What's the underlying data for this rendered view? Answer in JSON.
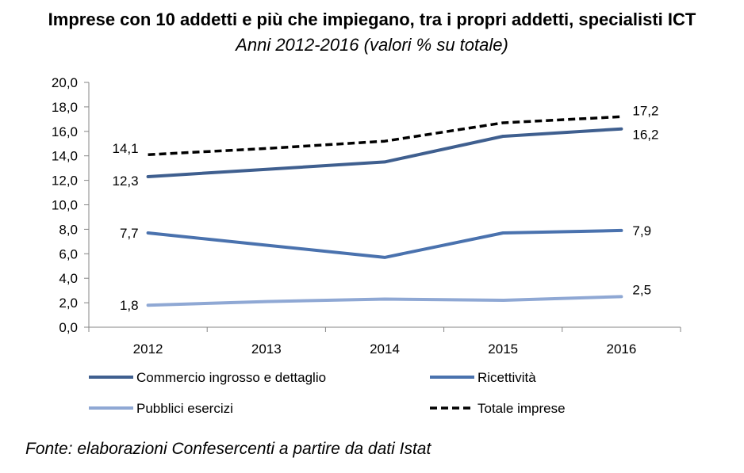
{
  "chart_data": {
    "type": "line",
    "title": "Imprese con 10 addetti e più che impiegano, tra i propri addetti, specialisti ICT",
    "subtitle": "Anni 2012-2016 (valori % su totale)",
    "categories": [
      "2012",
      "2013",
      "2014",
      "2015",
      "2016"
    ],
    "ylim": [
      0,
      20
    ],
    "y_ticks": [
      "0,0",
      "2,0",
      "4,0",
      "6,0",
      "8,0",
      "10,0",
      "12,0",
      "14,0",
      "16,0",
      "18,0",
      "20,0"
    ],
    "grid": false,
    "legend_position": "bottom",
    "series": [
      {
        "name": "Commercio ingrosso e dettaglio",
        "values": [
          12.3,
          12.9,
          13.5,
          15.6,
          16.2
        ],
        "color": "#3F5F8F",
        "dash": "solid",
        "labels": [
          {
            "index": 0,
            "text": "12,3"
          },
          {
            "index": 4,
            "text": "16,2"
          }
        ]
      },
      {
        "name": "Ricettività",
        "values": [
          7.7,
          6.7,
          5.7,
          7.7,
          7.9
        ],
        "color": "#4A72AE",
        "dash": "solid",
        "labels": [
          {
            "index": 0,
            "text": "7,7"
          },
          {
            "index": 4,
            "text": "7,9"
          }
        ]
      },
      {
        "name": "Pubblici esercizi",
        "values": [
          1.8,
          2.1,
          2.3,
          2.2,
          2.5
        ],
        "color": "#8FA8D4",
        "dash": "solid",
        "labels": [
          {
            "index": 0,
            "text": "1,8"
          },
          {
            "index": 4,
            "text": "2,5"
          }
        ]
      },
      {
        "name": "Totale imprese",
        "values": [
          14.1,
          14.6,
          15.2,
          16.7,
          17.2
        ],
        "color": "#000000",
        "dash": "dashed",
        "labels": [
          {
            "index": 0,
            "text": "14,1"
          },
          {
            "index": 4,
            "text": "17,2"
          }
        ]
      }
    ]
  },
  "source": "Fonte: elaborazioni Confesercenti a partire da dati Istat"
}
